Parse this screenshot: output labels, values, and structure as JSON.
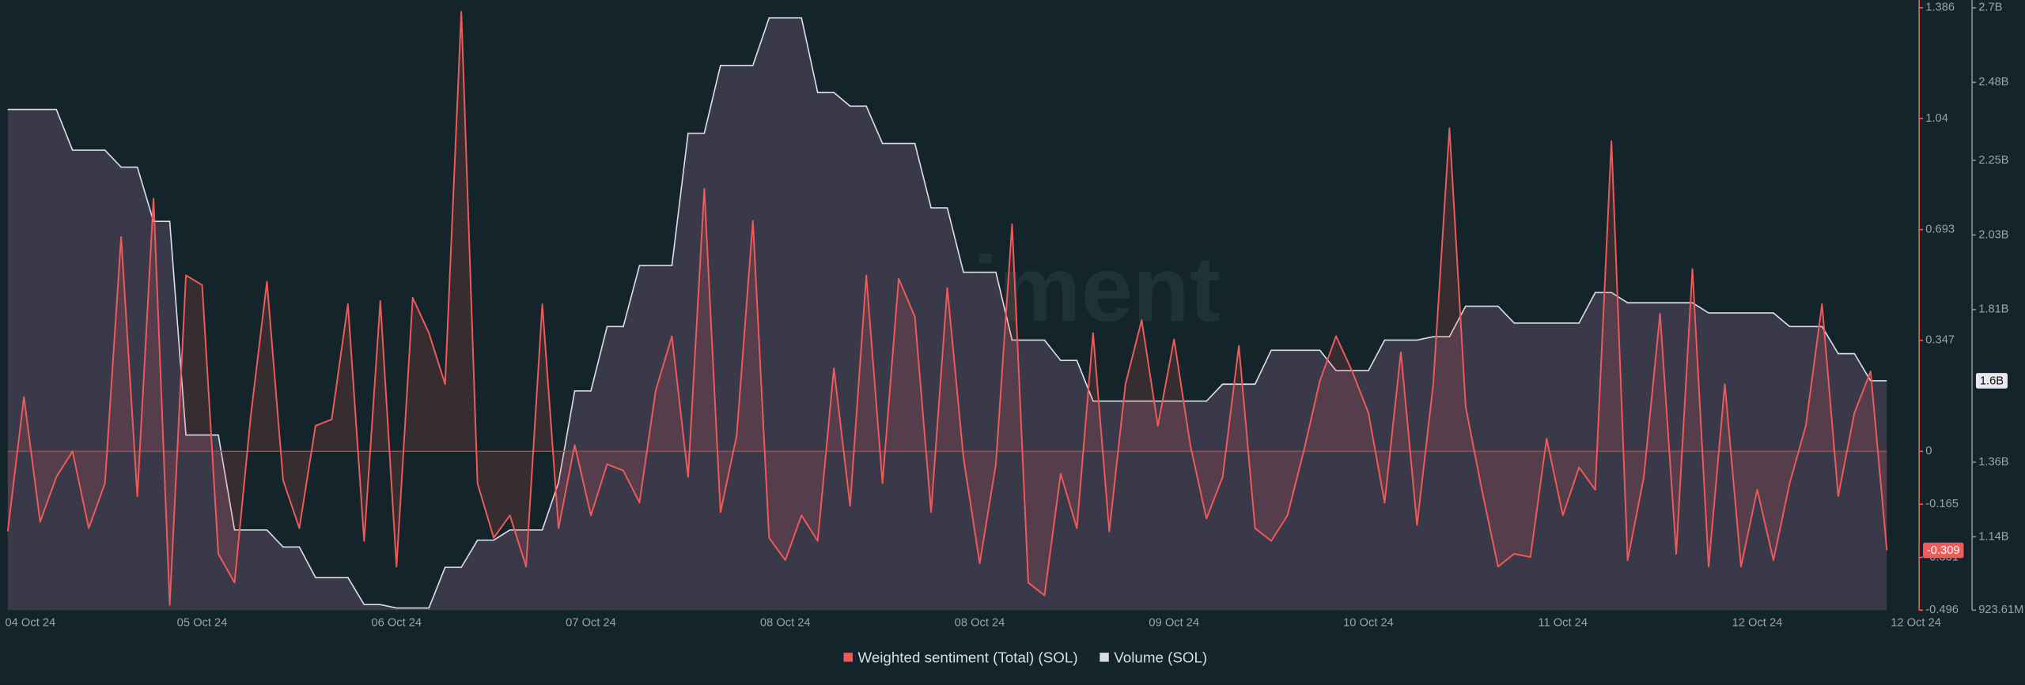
{
  "chart_data": {
    "type": "line",
    "watermark": "santiment",
    "categories": [
      "04 Oct 24",
      null,
      null,
      null,
      null,
      null,
      null,
      null,
      null,
      null,
      null,
      null,
      "05 Oct 24",
      null,
      null,
      null,
      null,
      null,
      null,
      null,
      null,
      null,
      null,
      null,
      "06 Oct 24",
      null,
      null,
      null,
      null,
      null,
      null,
      null,
      null,
      null,
      null,
      null,
      "07 Oct 24",
      null,
      null,
      null,
      null,
      null,
      null,
      null,
      null,
      null,
      null,
      null,
      "08 Oct 24",
      null,
      null,
      null,
      null,
      null,
      null,
      null,
      null,
      null,
      null,
      null,
      "08 Oct 24",
      null,
      null,
      null,
      null,
      null,
      null,
      null,
      null,
      null,
      null,
      null,
      "09 Oct 24",
      null,
      null,
      null,
      null,
      null,
      null,
      null,
      null,
      null,
      null,
      null,
      "10 Oct 24",
      null,
      null,
      null,
      null,
      null,
      null,
      null,
      null,
      null,
      null,
      null,
      "11 Oct 24",
      null,
      null,
      null,
      null,
      null,
      null,
      null,
      null,
      null,
      null,
      null,
      "12 Oct 24",
      null,
      null,
      null,
      null,
      null,
      null,
      null,
      "12 Oct 24"
    ],
    "series": [
      {
        "name": "Weighted sentiment (Total) (SOL)",
        "color": "#f05a5a",
        "axis": "y",
        "current_value_label": "-0.309",
        "values": [
          -0.25,
          0.17,
          -0.22,
          -0.08,
          0.0,
          -0.24,
          -0.1,
          0.67,
          -0.14,
          0.79,
          -0.48,
          0.55,
          0.52,
          -0.32,
          -0.41,
          0.11,
          0.53,
          -0.09,
          -0.24,
          0.08,
          0.1,
          0.46,
          -0.28,
          0.47,
          -0.36,
          0.48,
          0.37,
          0.21,
          1.374,
          -0.1,
          -0.27,
          -0.2,
          -0.36,
          0.46,
          -0.24,
          0.02,
          -0.2,
          -0.04,
          -0.06,
          -0.16,
          0.19,
          0.36,
          -0.08,
          0.82,
          -0.19,
          0.05,
          0.72,
          -0.27,
          -0.34,
          -0.2,
          -0.28,
          0.26,
          -0.17,
          0.55,
          -0.1,
          0.54,
          0.42,
          -0.19,
          0.51,
          -0.02,
          -0.35,
          -0.04,
          0.71,
          -0.41,
          -0.45,
          -0.07,
          -0.24,
          0.37,
          -0.25,
          0.21,
          0.41,
          0.08,
          0.35,
          0.02,
          -0.21,
          -0.08,
          0.33,
          -0.24,
          -0.28,
          -0.2,
          0.0,
          0.22,
          0.36,
          0.25,
          0.12,
          -0.16,
          0.31,
          -0.23,
          0.21,
          1.01,
          0.14,
          -0.12,
          -0.36,
          -0.32,
          -0.33,
          0.04,
          -0.2,
          -0.05,
          -0.12,
          0.97,
          -0.34,
          -0.08,
          0.43,
          -0.32,
          0.57,
          -0.36,
          0.21,
          -0.36,
          -0.12,
          -0.34,
          -0.1,
          0.08,
          0.46,
          -0.14,
          0.12,
          0.25,
          -0.309
        ]
      },
      {
        "name": "Volume (SOL)",
        "color": "#dcdce4",
        "axis": "y2",
        "current_value_label": "1.6B",
        "values": [
          2.4,
          2.4,
          2.4,
          2.4,
          2.28,
          2.28,
          2.28,
          2.23,
          2.23,
          2.07,
          2.07,
          1.44,
          1.44,
          1.44,
          1.16,
          1.16,
          1.16,
          1.11,
          1.11,
          1.02,
          1.02,
          1.02,
          0.94,
          0.94,
          0.93,
          0.93,
          0.93,
          1.05,
          1.05,
          1.13,
          1.13,
          1.16,
          1.16,
          1.16,
          1.3,
          1.57,
          1.57,
          1.76,
          1.76,
          1.94,
          1.94,
          1.94,
          2.33,
          2.33,
          2.53,
          2.53,
          2.53,
          2.67,
          2.67,
          2.67,
          2.45,
          2.45,
          2.41,
          2.41,
          2.3,
          2.3,
          2.3,
          2.11,
          2.11,
          1.92,
          1.92,
          1.92,
          1.72,
          1.72,
          1.72,
          1.66,
          1.66,
          1.54,
          1.54,
          1.54,
          1.54,
          1.54,
          1.54,
          1.54,
          1.54,
          1.59,
          1.59,
          1.59,
          1.69,
          1.69,
          1.69,
          1.69,
          1.63,
          1.63,
          1.63,
          1.72,
          1.72,
          1.72,
          1.73,
          1.73,
          1.82,
          1.82,
          1.82,
          1.77,
          1.77,
          1.77,
          1.77,
          1.77,
          1.86,
          1.86,
          1.83,
          1.83,
          1.83,
          1.83,
          1.83,
          1.8,
          1.8,
          1.8,
          1.8,
          1.8,
          1.76,
          1.76,
          1.76,
          1.68,
          1.68,
          1.6,
          1.6
        ]
      }
    ],
    "ylim": [
      -0.496,
      1.386
    ],
    "yticks": [
      1.386,
      1.04,
      0.693,
      0.347,
      0,
      -0.165,
      -0.331,
      -0.496
    ],
    "y2lim": [
      0.92361,
      2.7
    ],
    "y2ticks": [
      {
        "value": 2.7,
        "label": "2.7B"
      },
      {
        "value": 2.48,
        "label": "2.48B"
      },
      {
        "value": 2.25,
        "label": "2.25B"
      },
      {
        "value": 2.03,
        "label": "2.03B"
      },
      {
        "value": 1.81,
        "label": "1.81B"
      },
      {
        "value": 1.36,
        "label": "1.36B"
      },
      {
        "value": 1.14,
        "label": "1.14B"
      },
      {
        "value": 0.92361,
        "label": "923.61M"
      }
    ],
    "grid": false,
    "legend": "bottom"
  }
}
